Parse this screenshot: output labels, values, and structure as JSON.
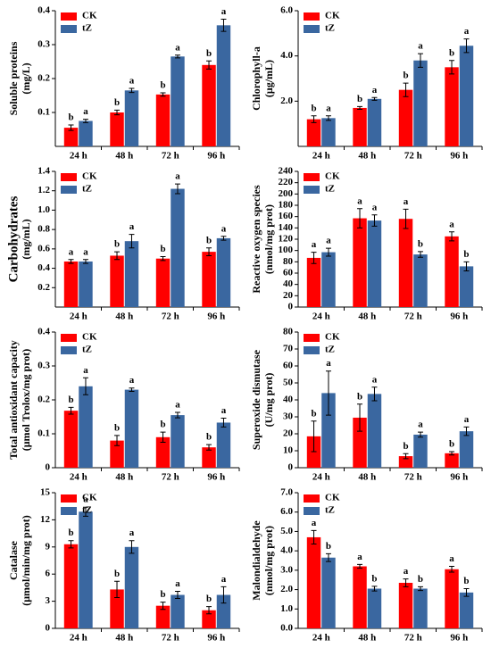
{
  "chart_data": [
    {
      "type": "bar",
      "ylabel": [
        "Soluble proteins",
        "(mg/L)"
      ],
      "categories": [
        "24 h",
        "48 h",
        "72 h",
        "96 h"
      ],
      "ylim": [
        0,
        0.4
      ],
      "yticks": [
        0.1,
        0.2,
        0.3,
        0.4
      ],
      "series": [
        {
          "name": "CK",
          "color": "#ff0000",
          "values": [
            0.055,
            0.1,
            0.153,
            0.24
          ],
          "errors": [
            0.008,
            0.007,
            0.005,
            0.012
          ],
          "letters": [
            "b",
            "b",
            "b",
            "b"
          ]
        },
        {
          "name": "tZ",
          "color": "#3a67a0",
          "values": [
            0.075,
            0.165,
            0.265,
            0.357
          ],
          "errors": [
            0.005,
            0.006,
            0.004,
            0.018
          ],
          "letters": [
            "a",
            "a",
            "a",
            "a"
          ]
        }
      ]
    },
    {
      "type": "bar",
      "ylabel": [
        "Chlorophyll-a",
        "(μg/mL)"
      ],
      "categories": [
        "24 h",
        "48 h",
        "72 h",
        "96 h"
      ],
      "ylim": [
        0,
        6
      ],
      "yticks": [
        {
          "value": 2,
          "label": "2.0"
        },
        {
          "value": 4,
          "label": "4.0"
        },
        {
          "value": 6,
          "label": "6.0"
        }
      ],
      "series": [
        {
          "name": "CK",
          "color": "#ff0000",
          "values": [
            1.2,
            1.7,
            2.5,
            3.5
          ],
          "errors": [
            0.15,
            0.06,
            0.3,
            0.3
          ],
          "letters": [
            "b",
            "b",
            "b",
            "b"
          ]
        },
        {
          "name": "tZ",
          "color": "#3a67a0",
          "values": [
            1.25,
            2.1,
            3.8,
            4.45
          ],
          "errors": [
            0.1,
            0.06,
            0.3,
            0.3
          ],
          "letters": [
            "a",
            "a",
            "a",
            "a"
          ]
        }
      ]
    },
    {
      "type": "bar",
      "ylabel": [
        "Carbohydrates",
        "(mg/mL)"
      ],
      "categories": [
        "24 h",
        "48 h",
        "72 h",
        "96 h"
      ],
      "ylim": [
        0,
        1.4
      ],
      "yticks": [
        0.2,
        0.4,
        0.6,
        0.8,
        {
          "value": 1,
          "label": "1.0"
        },
        1.2,
        1.4
      ],
      "series": [
        {
          "name": "CK",
          "color": "#ff0000",
          "values": [
            0.47,
            0.53,
            0.5,
            0.57
          ],
          "errors": [
            0.02,
            0.04,
            0.02,
            0.04
          ],
          "letters": [
            "a",
            "b",
            "b",
            "b"
          ]
        },
        {
          "name": "tZ",
          "color": "#3a67a0",
          "values": [
            0.47,
            0.68,
            1.22,
            0.71
          ],
          "errors": [
            0.02,
            0.07,
            0.05,
            0.02
          ],
          "letters": [
            "a",
            "a",
            "a",
            "a"
          ]
        }
      ]
    },
    {
      "type": "bar",
      "ylabel": [
        "Reactive oxygen species",
        "(nmol/mg prot)"
      ],
      "categories": [
        "24 h",
        "48 h",
        "72 h",
        "96 h"
      ],
      "ylim": [
        0,
        240
      ],
      "yticks": [
        0,
        20,
        40,
        60,
        80,
        100,
        120,
        140,
        160,
        180,
        200,
        220,
        240
      ],
      "series": [
        {
          "name": "CK",
          "color": "#ff0000",
          "values": [
            87,
            157,
            156,
            125
          ],
          "errors": [
            10,
            17,
            17,
            8
          ],
          "letters": [
            "a",
            "a",
            "a",
            "a"
          ]
        },
        {
          "name": "tZ",
          "color": "#3a67a0",
          "values": [
            97,
            153,
            93,
            72
          ],
          "errors": [
            7,
            10,
            5,
            8
          ],
          "letters": [
            "a",
            "a",
            "b",
            "b"
          ]
        }
      ]
    },
    {
      "type": "bar",
      "ylabel": [
        "Total antioxidant capacity",
        "(μmol Trolox/mg prot)"
      ],
      "categories": [
        "24 h",
        "48 h",
        "72 h",
        "96 h"
      ],
      "ylim": [
        0,
        0.4
      ],
      "yticks": [
        0,
        0.1,
        0.2,
        0.3,
        0.4
      ],
      "series": [
        {
          "name": "CK",
          "color": "#ff0000",
          "values": [
            0.168,
            0.08,
            0.09,
            0.06
          ],
          "errors": [
            0.01,
            0.015,
            0.015,
            0.008
          ],
          "letters": [
            "b",
            "b",
            "b",
            "b"
          ]
        },
        {
          "name": "tZ",
          "color": "#3a67a0",
          "values": [
            0.24,
            0.23,
            0.155,
            0.133
          ],
          "errors": [
            0.025,
            0.005,
            0.008,
            0.013
          ],
          "letters": [
            "a",
            "a",
            "a",
            "a"
          ]
        }
      ]
    },
    {
      "type": "bar",
      "ylabel": [
        "Superoxide dismutase",
        "(U/mg prot)"
      ],
      "categories": [
        "24 h",
        "48 h",
        "72 h",
        "96 h"
      ],
      "ylim": [
        0,
        80
      ],
      "yticks": [
        0,
        10,
        20,
        30,
        40,
        50,
        60,
        70,
        80
      ],
      "series": [
        {
          "name": "CK",
          "color": "#ff0000",
          "values": [
            18.5,
            29.5,
            6.8,
            8.5
          ],
          "errors": [
            9,
            8,
            1.5,
            1
          ],
          "letters": [
            "b",
            "b",
            "b",
            "b"
          ]
        },
        {
          "name": "tZ",
          "color": "#3a67a0",
          "values": [
            44,
            43.5,
            19.5,
            21.5
          ],
          "errors": [
            13,
            4,
            1.5,
            2.5
          ],
          "letters": [
            "a",
            "a",
            "a",
            "a"
          ]
        }
      ]
    },
    {
      "type": "bar",
      "ylabel": [
        "Catalase",
        "(μmol/min/mg prot)"
      ],
      "categories": [
        "24 h",
        "48 h",
        "72 h",
        "96 h"
      ],
      "ylim": [
        0,
        15
      ],
      "yticks": [
        0,
        3,
        6,
        9,
        12,
        15
      ],
      "series": [
        {
          "name": "CK",
          "color": "#ff0000",
          "values": [
            9.3,
            4.3,
            2.5,
            2
          ],
          "errors": [
            0.4,
            0.9,
            0.4,
            0.4
          ],
          "letters": [
            "b",
            "b",
            "b",
            "b"
          ]
        },
        {
          "name": "tZ",
          "color": "#3a67a0",
          "values": [
            12.9,
            9,
            3.7,
            3.7
          ],
          "errors": [
            0.5,
            0.7,
            0.4,
            0.9
          ],
          "letters": [
            "a",
            "a",
            "a",
            "a"
          ]
        }
      ]
    },
    {
      "type": "bar",
      "ylabel": [
        "Malondialdehyde",
        "(nmol/mg prot)"
      ],
      "categories": [
        "24 h",
        "48 h",
        "72 h",
        "96 h"
      ],
      "ylim": [
        0,
        7
      ],
      "yticks": [
        {
          "value": 0,
          "label": "0.0"
        },
        {
          "value": 1,
          "label": "1.0"
        },
        {
          "value": 2,
          "label": "2.0"
        },
        {
          "value": 3,
          "label": "3.0"
        },
        {
          "value": 4,
          "label": "4.0"
        },
        {
          "value": 5,
          "label": "5.0"
        },
        {
          "value": 6,
          "label": "6.0"
        },
        {
          "value": 7,
          "label": "7.0"
        }
      ],
      "series": [
        {
          "name": "CK",
          "color": "#ff0000",
          "values": [
            4.7,
            3.2,
            2.35,
            3.05
          ],
          "errors": [
            0.35,
            0.1,
            0.2,
            0.15
          ],
          "letters": [
            "a",
            "a",
            "a",
            "a"
          ]
        },
        {
          "name": "tZ",
          "color": "#3a67a0",
          "values": [
            3.65,
            2.05,
            2.05,
            1.85
          ],
          "errors": [
            0.2,
            0.12,
            0.1,
            0.2
          ],
          "letters": [
            "b",
            "b",
            "b",
            "b"
          ]
        }
      ]
    }
  ]
}
